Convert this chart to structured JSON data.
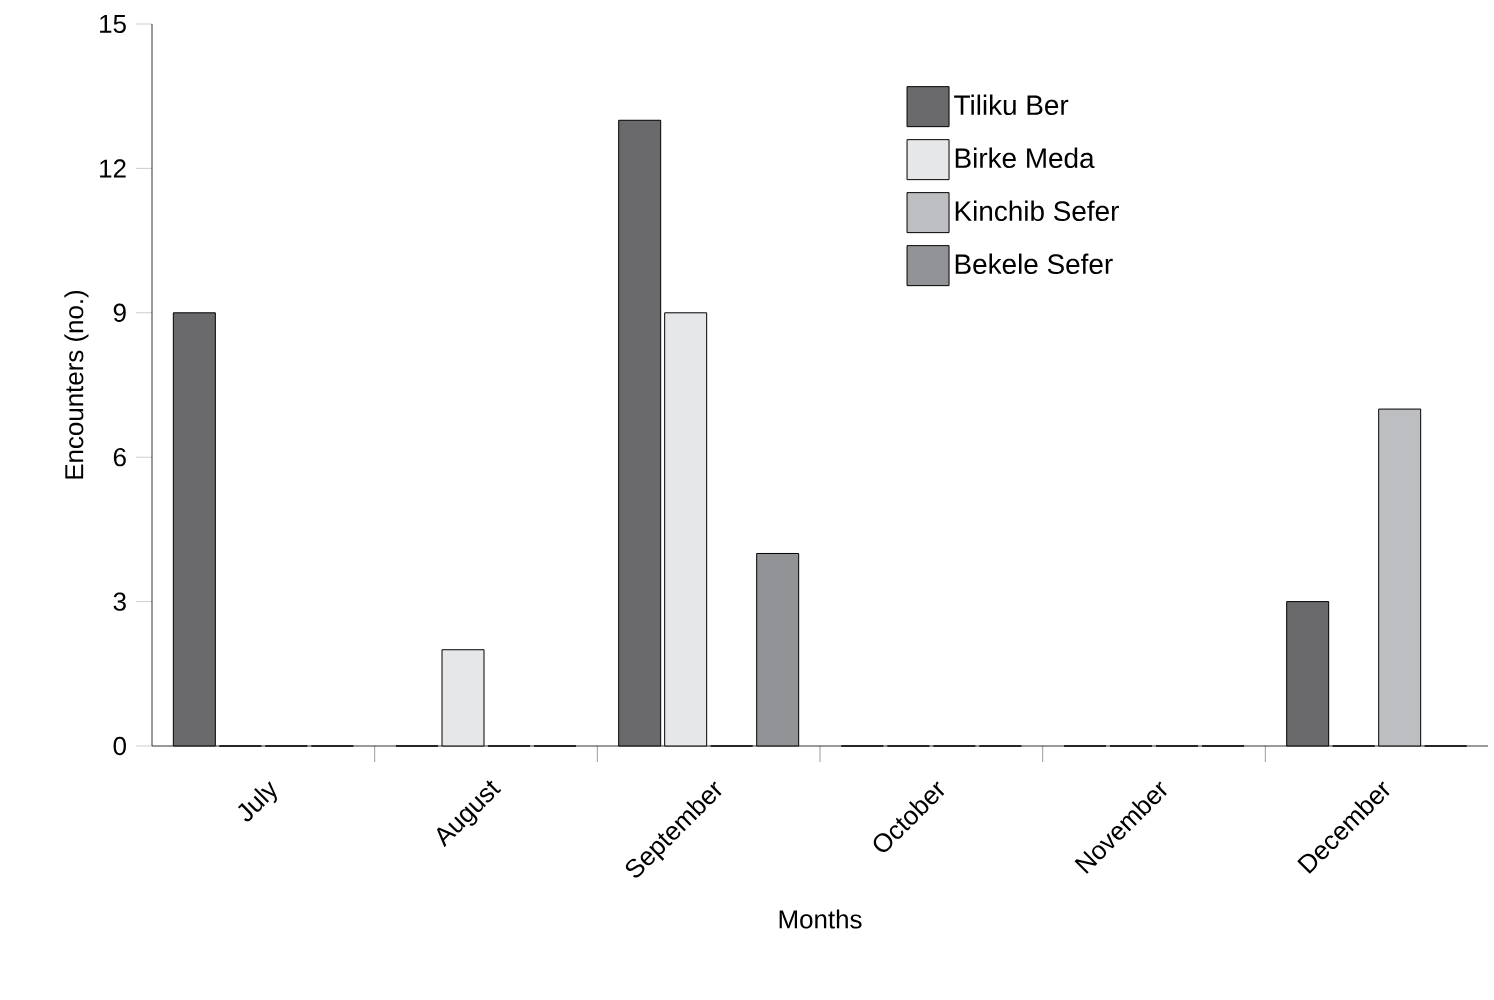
{
  "chart_data": {
    "type": "bar",
    "xlabel": "Months",
    "ylabel": "Encounters (no.)",
    "categories": [
      "July",
      "August",
      "September",
      "October",
      "November",
      "December"
    ],
    "series": [
      {
        "name": "Tiliku Ber",
        "color": "#6a6a6c",
        "values": [
          9,
          0,
          13,
          0,
          0,
          3
        ]
      },
      {
        "name": "Birke Meda",
        "color": "#e6e7e9",
        "values": [
          0,
          2,
          9,
          0,
          0,
          0
        ]
      },
      {
        "name": "Kinchib Sefer",
        "color": "#bdbec1",
        "values": [
          0,
          0,
          0,
          0,
          0,
          7
        ]
      },
      {
        "name": "Bekele Sefer",
        "color": "#929396",
        "values": [
          0,
          0,
          4,
          0,
          0,
          0
        ]
      }
    ],
    "ylim": [
      0,
      15
    ],
    "yticks": [
      0,
      3,
      6,
      9,
      12,
      15
    ],
    "grid": false,
    "legend": "top right"
  }
}
